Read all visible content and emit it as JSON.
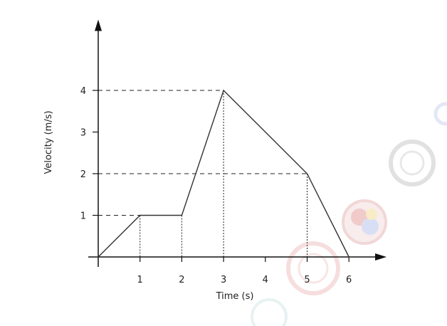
{
  "chart_data": {
    "type": "line",
    "title": "",
    "xlabel": "Time (s)",
    "ylabel": "Velocity (m/s)",
    "x": [
      0,
      1,
      2,
      3,
      5,
      6
    ],
    "series": [
      {
        "values": [
          0,
          1,
          1,
          4,
          2,
          0
        ]
      }
    ],
    "xticks": [
      "1",
      "2",
      "3",
      "4",
      "5",
      "6"
    ],
    "yticks": [
      "1",
      "2",
      "3",
      "4"
    ],
    "xlim": [
      0,
      6.9
    ],
    "ylim": [
      0,
      5.7
    ],
    "grid": false,
    "guide_lines": "dashed to y-axis, dotted to x-axis at vertices",
    "colors": {
      "line": "#333333",
      "axis": "#111111",
      "guide": "#222222"
    }
  }
}
